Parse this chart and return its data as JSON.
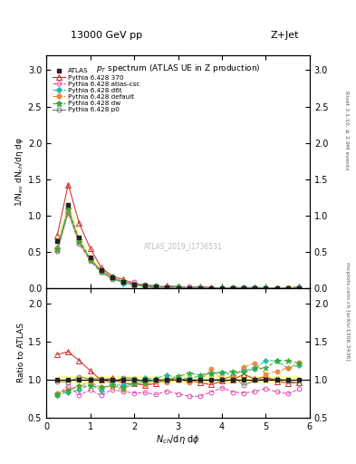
{
  "title_top": "13000 GeV pp",
  "title_right": "Z+Jet",
  "plot_title": "p$_T$ spectrum (ATLAS UE in Z production)",
  "ylabel_main": "1/N$_{ev}$ dN$_{ch}$/dη dφ",
  "ylabel_ratio": "Ratio to ATLAS",
  "xlabel": "N$_{ch}$/dη dφ",
  "watermark": "ATLAS_2019_I1736531",
  "right_label_top": "Rivet 3.1.10, ≥ 2.9M events",
  "right_label_bottom": "mcplots.cern.ch [arXiv:1306.3436]",
  "xlim": [
    0,
    6
  ],
  "ylim_main": [
    0,
    3.2
  ],
  "ylim_ratio": [
    0.5,
    2.2
  ],
  "yticks_main": [
    0,
    0.5,
    1.0,
    1.5,
    2.0,
    2.5,
    3.0
  ],
  "yticks_ratio": [
    0.5,
    1.0,
    1.5,
    2.0
  ],
  "series": {
    "ATLAS": {
      "color": "#222222",
      "marker": "s",
      "markersize": 3.5,
      "linestyle": "none",
      "linewidth": 1.0,
      "label": "ATLAS",
      "fillstyle": "full",
      "zorder": 10
    },
    "370": {
      "color": "#cc2222",
      "marker": "^",
      "markersize": 4,
      "linestyle": "-",
      "linewidth": 0.8,
      "label": "Pythia 6.428 370",
      "fillstyle": "none",
      "zorder": 5
    },
    "atlas-csc": {
      "color": "#dd44aa",
      "marker": "o",
      "markersize": 3.5,
      "linestyle": "--",
      "linewidth": 0.8,
      "label": "Pythia 6.428 atlas-csc",
      "fillstyle": "none",
      "zorder": 5
    },
    "d6t": {
      "color": "#22bbaa",
      "marker": "D",
      "markersize": 3,
      "linestyle": "--",
      "linewidth": 0.8,
      "label": "Pythia 6.428 d6t",
      "fillstyle": "full",
      "zorder": 6
    },
    "default": {
      "color": "#ee8833",
      "marker": "o",
      "markersize": 3.5,
      "linestyle": "--",
      "linewidth": 0.8,
      "label": "Pythia 6.428 default",
      "fillstyle": "full",
      "zorder": 6
    },
    "dw": {
      "color": "#33aa33",
      "marker": "*",
      "markersize": 5,
      "linestyle": "--",
      "linewidth": 0.8,
      "label": "Pythia 6.428 dw",
      "fillstyle": "full",
      "zorder": 6
    },
    "p0": {
      "color": "#777777",
      "marker": "o",
      "markersize": 3.5,
      "linestyle": "-",
      "linewidth": 0.8,
      "label": "Pythia 6.428 p0",
      "fillstyle": "none",
      "zorder": 5
    }
  },
  "background_color": "#ffffff"
}
